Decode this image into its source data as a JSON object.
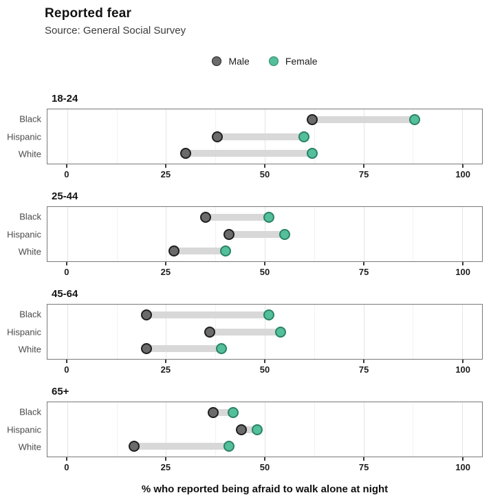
{
  "chart_data": {
    "type": "dumbbell",
    "title": "Reported fear",
    "subtitle": "Source: General Social Survey",
    "xlabel": "% who reported being afraid to walk alone at night",
    "xlim": [
      -5,
      105
    ],
    "x_major_ticks": [
      0,
      25,
      50,
      75,
      100
    ],
    "x_minor_gridlines": [
      12.5,
      37.5,
      62.5,
      87.5
    ],
    "grid": "vertical gridlines only, white panel background, gray panel border",
    "legend_position": "top-center",
    "band_color": "#d8d8d8",
    "series_meta": [
      {
        "name": "Male",
        "fill": "#6b6b6b",
        "stroke": "#1f1f1f"
      },
      {
        "name": "Female",
        "fill": "#54bf9b",
        "stroke": "#2a8267"
      }
    ],
    "facets": [
      {
        "label": "18-24",
        "rows": [
          {
            "category": "Black",
            "male": 62,
            "female": 88
          },
          {
            "category": "Hispanic",
            "male": 38,
            "female": 60
          },
          {
            "category": "White",
            "male": 30,
            "female": 62
          }
        ]
      },
      {
        "label": "25-44",
        "rows": [
          {
            "category": "Black",
            "male": 35,
            "female": 51
          },
          {
            "category": "Hispanic",
            "male": 41,
            "female": 55
          },
          {
            "category": "White",
            "male": 27,
            "female": 40
          }
        ]
      },
      {
        "label": "45-64",
        "rows": [
          {
            "category": "Black",
            "male": 20,
            "female": 51
          },
          {
            "category": "Hispanic",
            "male": 36,
            "female": 54
          },
          {
            "category": "White",
            "male": 20,
            "female": 39
          }
        ]
      },
      {
        "label": "65+",
        "rows": [
          {
            "category": "Black",
            "male": 37,
            "female": 42
          },
          {
            "category": "Hispanic",
            "male": 44,
            "female": 48
          },
          {
            "category": "White",
            "male": 17,
            "female": 41
          }
        ]
      }
    ]
  }
}
